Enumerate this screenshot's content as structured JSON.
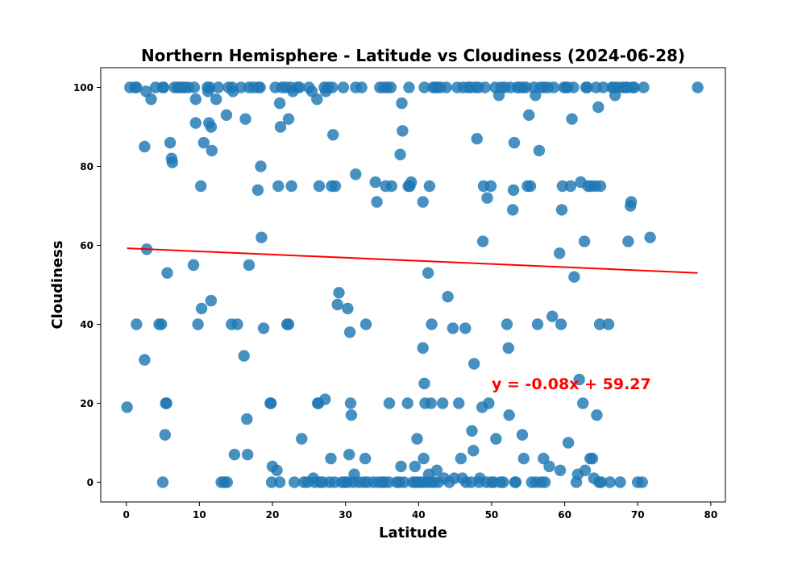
{
  "chart_data": {
    "type": "scatter",
    "title": "Northern Hemisphere - Latitude vs Cloudiness (2024-06-28)",
    "xlabel": "Latitude",
    "ylabel": "Cloudiness",
    "xlim": [
      -3.5,
      82
    ],
    "ylim": [
      -5,
      105
    ],
    "xticks": [
      0,
      10,
      20,
      30,
      40,
      50,
      60,
      70,
      80
    ],
    "yticks": [
      0,
      20,
      40,
      60,
      80,
      100
    ],
    "grid": false,
    "marker_color": "#1f77b4",
    "line_color": "#ff0000",
    "regression": {
      "slope": -0.08,
      "intercept": 59.27,
      "x_range": [
        0.1,
        78.2
      ],
      "equation": "y = -0.08x + 59.27",
      "label_x": 50,
      "label_y": 25
    },
    "points": [
      [
        0.1,
        19
      ],
      [
        0.5,
        100
      ],
      [
        1.2,
        100
      ],
      [
        1.4,
        100
      ],
      [
        1.4,
        40
      ],
      [
        2.5,
        85
      ],
      [
        2.7,
        99
      ],
      [
        2.8,
        59
      ],
      [
        2.5,
        31
      ],
      [
        3.4,
        97
      ],
      [
        4,
        100
      ],
      [
        4.5,
        40
      ],
      [
        4.8,
        40
      ],
      [
        5,
        100
      ],
      [
        5.1,
        100
      ],
      [
        5,
        0
      ],
      [
        5.3,
        12
      ],
      [
        5.4,
        20
      ],
      [
        5.5,
        20
      ],
      [
        5.6,
        53
      ],
      [
        6,
        86
      ],
      [
        6.2,
        82
      ],
      [
        6.3,
        81
      ],
      [
        6.6,
        100
      ],
      [
        7,
        100
      ],
      [
        7.3,
        100
      ],
      [
        7.7,
        100
      ],
      [
        8,
        100
      ],
      [
        8.5,
        100
      ],
      [
        9.3,
        100
      ],
      [
        9.2,
        55
      ],
      [
        9.5,
        91
      ],
      [
        9.5,
        97
      ],
      [
        9.8,
        40
      ],
      [
        10.2,
        75
      ],
      [
        10.3,
        44
      ],
      [
        10.6,
        86
      ],
      [
        11.1,
        100
      ],
      [
        11.2,
        99
      ],
      [
        11.3,
        91
      ],
      [
        11.4,
        100
      ],
      [
        11.6,
        90
      ],
      [
        11.7,
        84
      ],
      [
        11.6,
        46
      ],
      [
        12.3,
        97
      ],
      [
        12.6,
        100
      ],
      [
        13,
        0
      ],
      [
        13.4,
        0
      ],
      [
        13.8,
        0
      ],
      [
        13.7,
        93
      ],
      [
        14,
        100
      ],
      [
        14.4,
        40
      ],
      [
        14.5,
        100
      ],
      [
        14.6,
        99
      ],
      [
        14.8,
        7
      ],
      [
        15.2,
        40
      ],
      [
        15.7,
        100
      ],
      [
        16.1,
        32
      ],
      [
        16.3,
        92
      ],
      [
        16.5,
        16
      ],
      [
        16.6,
        7
      ],
      [
        16.8,
        100
      ],
      [
        16.8,
        55
      ],
      [
        17.4,
        100
      ],
      [
        18,
        74
      ],
      [
        18.1,
        100
      ],
      [
        18.3,
        100
      ],
      [
        18.4,
        80
      ],
      [
        18.5,
        62
      ],
      [
        18.8,
        39
      ],
      [
        19.7,
        20
      ],
      [
        19.8,
        20
      ],
      [
        19.9,
        0
      ],
      [
        20,
        4
      ],
      [
        20.4,
        100
      ],
      [
        20.6,
        3
      ],
      [
        20.8,
        75
      ],
      [
        21,
        96
      ],
      [
        21.1,
        90
      ],
      [
        21,
        0
      ],
      [
        21.3,
        100
      ],
      [
        21.8,
        100
      ],
      [
        22,
        40
      ],
      [
        22.2,
        40
      ],
      [
        22.2,
        92
      ],
      [
        22.5,
        100
      ],
      [
        22.6,
        75
      ],
      [
        22.8,
        99
      ],
      [
        23,
        0
      ],
      [
        23.4,
        100
      ],
      [
        23.7,
        100
      ],
      [
        24,
        11
      ],
      [
        24.3,
        0
      ],
      [
        24.8,
        0
      ],
      [
        25,
        100
      ],
      [
        25.4,
        99
      ],
      [
        25.6,
        1
      ],
      [
        25.8,
        0
      ],
      [
        26.1,
        97
      ],
      [
        26.2,
        20
      ],
      [
        26.3,
        20
      ],
      [
        26.4,
        75
      ],
      [
        26.5,
        0
      ],
      [
        26.9,
        0
      ],
      [
        27.1,
        100
      ],
      [
        27.2,
        21
      ],
      [
        27.3,
        99
      ],
      [
        27.6,
        100
      ],
      [
        27.8,
        0
      ],
      [
        28,
        6
      ],
      [
        28.1,
        75
      ],
      [
        28.2,
        100
      ],
      [
        28.3,
        88
      ],
      [
        28.5,
        0
      ],
      [
        28.6,
        75
      ],
      [
        28.9,
        45
      ],
      [
        29.1,
        48
      ],
      [
        29.5,
        0
      ],
      [
        29.7,
        100
      ],
      [
        29.9,
        0
      ],
      [
        30.2,
        0
      ],
      [
        30.3,
        44
      ],
      [
        30.5,
        7
      ],
      [
        30.6,
        38
      ],
      [
        30.7,
        20
      ],
      [
        30.8,
        17
      ],
      [
        31,
        0
      ],
      [
        31.2,
        2
      ],
      [
        31.4,
        78
      ],
      [
        31.4,
        100
      ],
      [
        31.8,
        0
      ],
      [
        32.2,
        100
      ],
      [
        32.5,
        0
      ],
      [
        32.7,
        6
      ],
      [
        32.8,
        40
      ],
      [
        33,
        0
      ],
      [
        33.8,
        0
      ],
      [
        34.1,
        76
      ],
      [
        34.3,
        71
      ],
      [
        34.5,
        0
      ],
      [
        34.7,
        100
      ],
      [
        35,
        0
      ],
      [
        35.2,
        100
      ],
      [
        35.3,
        0
      ],
      [
        35.5,
        75
      ],
      [
        35.7,
        100
      ],
      [
        35.9,
        0
      ],
      [
        36,
        20
      ],
      [
        36.2,
        100
      ],
      [
        36.3,
        75
      ],
      [
        37,
        0
      ],
      [
        37.4,
        0
      ],
      [
        37.5,
        83
      ],
      [
        37.6,
        4
      ],
      [
        37.7,
        96
      ],
      [
        37.8,
        89
      ],
      [
        38,
        0
      ],
      [
        38.5,
        20
      ],
      [
        38.6,
        75
      ],
      [
        38.7,
        100
      ],
      [
        38.8,
        75
      ],
      [
        39,
        76
      ],
      [
        39.2,
        0
      ],
      [
        39.5,
        4
      ],
      [
        39.6,
        0
      ],
      [
        39.8,
        11
      ],
      [
        40,
        0
      ],
      [
        40.5,
        0
      ],
      [
        40.6,
        71
      ],
      [
        40.6,
        34
      ],
      [
        40.7,
        6
      ],
      [
        40.8,
        100
      ],
      [
        40.8,
        25
      ],
      [
        40.9,
        20
      ],
      [
        41,
        0
      ],
      [
        41.3,
        53
      ],
      [
        41.4,
        2
      ],
      [
        41.5,
        75
      ],
      [
        41.6,
        0
      ],
      [
        41.7,
        20
      ],
      [
        41.8,
        40
      ],
      [
        42,
        100
      ],
      [
        42.1,
        0
      ],
      [
        42.3,
        100
      ],
      [
        42.5,
        3
      ],
      [
        42.6,
        100
      ],
      [
        42.7,
        0
      ],
      [
        43,
        100
      ],
      [
        43.3,
        20
      ],
      [
        43.5,
        1
      ],
      [
        43.8,
        100
      ],
      [
        44,
        47
      ],
      [
        44.2,
        0
      ],
      [
        44.7,
        39
      ],
      [
        44.9,
        1
      ],
      [
        45.3,
        100
      ],
      [
        45.5,
        20
      ],
      [
        45.8,
        6
      ],
      [
        46,
        1
      ],
      [
        46.1,
        100
      ],
      [
        46.4,
        39
      ],
      [
        46.5,
        0
      ],
      [
        46.8,
        100
      ],
      [
        47.1,
        100
      ],
      [
        47.2,
        0
      ],
      [
        47.3,
        13
      ],
      [
        47.5,
        8
      ],
      [
        47.6,
        30
      ],
      [
        47.8,
        100
      ],
      [
        48,
        87
      ],
      [
        48.2,
        100
      ],
      [
        48.3,
        0
      ],
      [
        48.4,
        1
      ],
      [
        48.7,
        19
      ],
      [
        48.8,
        61
      ],
      [
        48.9,
        75
      ],
      [
        49.1,
        100
      ],
      [
        49.3,
        0
      ],
      [
        49.4,
        72
      ],
      [
        49.6,
        20
      ],
      [
        49.9,
        75
      ],
      [
        50,
        0
      ],
      [
        50.3,
        0
      ],
      [
        50.5,
        100
      ],
      [
        50.6,
        11
      ],
      [
        51,
        98
      ],
      [
        51.2,
        0
      ],
      [
        51.3,
        100
      ],
      [
        51.6,
        0
      ],
      [
        51.8,
        100
      ],
      [
        52.1,
        40
      ],
      [
        52.3,
        34
      ],
      [
        52.4,
        17
      ],
      [
        52.6,
        100
      ],
      [
        52.9,
        69
      ],
      [
        53,
        74
      ],
      [
        53.1,
        86
      ],
      [
        53.2,
        0
      ],
      [
        53.3,
        0
      ],
      [
        53.5,
        100
      ],
      [
        53.8,
        100
      ],
      [
        54.2,
        12
      ],
      [
        54.3,
        100
      ],
      [
        54.4,
        6
      ],
      [
        54.7,
        100
      ],
      [
        54.9,
        75
      ],
      [
        55.1,
        93
      ],
      [
        55.3,
        75
      ],
      [
        55.5,
        0
      ],
      [
        55.8,
        100
      ],
      [
        56.0,
        98
      ],
      [
        56.1,
        0
      ],
      [
        56.3,
        40
      ],
      [
        56.5,
        84
      ],
      [
        56.7,
        100
      ],
      [
        56.8,
        0
      ],
      [
        57.1,
        6
      ],
      [
        57.2,
        100
      ],
      [
        57.3,
        0
      ],
      [
        57.7,
        100
      ],
      [
        57.9,
        4
      ],
      [
        58.3,
        42
      ],
      [
        58.5,
        100
      ],
      [
        59.3,
        58
      ],
      [
        59.4,
        3
      ],
      [
        59.5,
        40
      ],
      [
        59.6,
        69
      ],
      [
        59.7,
        75
      ],
      [
        59.9,
        100
      ],
      [
        60.2,
        100
      ],
      [
        60.4,
        100
      ],
      [
        60.5,
        10
      ],
      [
        60.8,
        75
      ],
      [
        61,
        92
      ],
      [
        61.2,
        100
      ],
      [
        61.3,
        52
      ],
      [
        61.6,
        0
      ],
      [
        61.8,
        2
      ],
      [
        62,
        26
      ],
      [
        62.2,
        76
      ],
      [
        62.5,
        20
      ],
      [
        62.7,
        61
      ],
      [
        62.8,
        3
      ],
      [
        62.9,
        100
      ],
      [
        63.1,
        100
      ],
      [
        63.2,
        75
      ],
      [
        63.5,
        6
      ],
      [
        63.6,
        75
      ],
      [
        63.8,
        6
      ],
      [
        64,
        1
      ],
      [
        64.2,
        75
      ],
      [
        64.3,
        100
      ],
      [
        64.4,
        17
      ],
      [
        64.6,
        95
      ],
      [
        64.7,
        0
      ],
      [
        64.8,
        40
      ],
      [
        64.9,
        75
      ],
      [
        65,
        0
      ],
      [
        65.3,
        100
      ],
      [
        66,
        40
      ],
      [
        66.2,
        0
      ],
      [
        66.5,
        100
      ],
      [
        66.7,
        100
      ],
      [
        66.9,
        98
      ],
      [
        67.2,
        100
      ],
      [
        67.6,
        0
      ],
      [
        67.9,
        100
      ],
      [
        68.3,
        100
      ],
      [
        68.6,
        100
      ],
      [
        68.7,
        61
      ],
      [
        69,
        70
      ],
      [
        69.1,
        71
      ],
      [
        69.3,
        100
      ],
      [
        69.5,
        100
      ],
      [
        70,
        0
      ],
      [
        70.6,
        0
      ],
      [
        70.8,
        100
      ],
      [
        71.7,
        62
      ],
      [
        78.2,
        100
      ]
    ]
  }
}
